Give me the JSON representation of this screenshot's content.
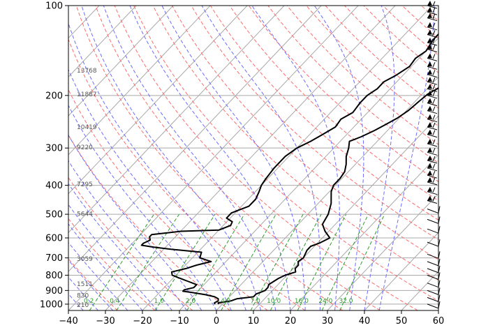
{
  "chart_data": {
    "type": "skew-t",
    "title": "",
    "xlabel": "",
    "ylabel": "",
    "x_range_degC": [
      -40,
      60
    ],
    "p_range_hPa": [
      1050,
      100
    ],
    "log_pressure_axis": true,
    "grid": true,
    "x_ticks": [
      -40,
      -30,
      -20,
      -10,
      0,
      10,
      20,
      30,
      40,
      50,
      60
    ],
    "p_ticks": [
      100,
      200,
      300,
      400,
      500,
      600,
      700,
      800,
      900,
      1000
    ],
    "height_labels": [
      {
        "p": 165,
        "text": "13768"
      },
      {
        "p": 198,
        "text": "11887"
      },
      {
        "p": 255,
        "text": "10419"
      },
      {
        "p": 298,
        "text": "9220"
      },
      {
        "p": 397,
        "text": "7295"
      },
      {
        "p": 498,
        "text": "5644"
      },
      {
        "p": 705,
        "text": "3059"
      },
      {
        "p": 855,
        "text": "1511"
      },
      {
        "p": 935,
        "text": "830"
      },
      {
        "p": 1007,
        "text": "210"
      }
    ],
    "mixing_ratio_labels": [
      "0.2",
      "0.4",
      "1.0",
      "2.0",
      "4.0",
      "7.0",
      "10.0",
      "16.0",
      "24.0",
      "32.0"
    ],
    "mixing_ratio_label_temps_degC": [
      -34.5,
      -27.5,
      -15.5,
      -7,
      2.5,
      10.5,
      15.5,
      23,
      29.5,
      35
    ],
    "temperature_profile": [
      {
        "p": 1000,
        "t": -1
      },
      {
        "p": 990,
        "t": -1.5
      },
      {
        "p": 975,
        "t": 1.5
      },
      {
        "p": 960,
        "t": 2.5
      },
      {
        "p": 945,
        "t": 6.5
      },
      {
        "p": 925,
        "t": 6.5
      },
      {
        "p": 900,
        "t": 8
      },
      {
        "p": 880,
        "t": 8
      },
      {
        "p": 860,
        "t": 7.5
      },
      {
        "p": 840,
        "t": 8
      },
      {
        "p": 820,
        "t": 8.5
      },
      {
        "p": 800,
        "t": 9.5
      },
      {
        "p": 780,
        "t": 11.5
      },
      {
        "p": 760,
        "t": 10.5
      },
      {
        "p": 740,
        "t": 10.5
      },
      {
        "p": 720,
        "t": 9.5
      },
      {
        "p": 700,
        "t": 10
      },
      {
        "p": 680,
        "t": 9.5
      },
      {
        "p": 660,
        "t": 9
      },
      {
        "p": 640,
        "t": 9
      },
      {
        "p": 625,
        "t": 10.5
      },
      {
        "p": 600,
        "t": 12
      },
      {
        "p": 570,
        "t": 9
      },
      {
        "p": 540,
        "t": 6.5
      },
      {
        "p": 500,
        "t": 5.5
      },
      {
        "p": 460,
        "t": 3.5
      },
      {
        "p": 420,
        "t": 0.5
      },
      {
        "p": 400,
        "t": -0.5
      },
      {
        "p": 380,
        "t": -0.5
      },
      {
        "p": 360,
        "t": -1
      },
      {
        "p": 340,
        "t": -2.5
      },
      {
        "p": 320,
        "t": -4.5
      },
      {
        "p": 300,
        "t": -6
      },
      {
        "p": 285,
        "t": -7.5
      },
      {
        "p": 275,
        "t": -5.5
      },
      {
        "p": 262,
        "t": -3.5
      },
      {
        "p": 250,
        "t": -2
      },
      {
        "p": 238,
        "t": -0.5
      },
      {
        "p": 225,
        "t": 0.5
      },
      {
        "p": 210,
        "t": 1
      },
      {
        "p": 198,
        "t": 1.5
      },
      {
        "p": 188,
        "t": 3
      },
      {
        "p": 182,
        "t": 5
      },
      {
        "p": 176,
        "t": 8.5
      },
      {
        "p": 168,
        "t": 9
      },
      {
        "p": 160,
        "t": 9.5
      },
      {
        "p": 150,
        "t": 10
      },
      {
        "p": 140,
        "t": 10
      },
      {
        "p": 132,
        "t": 12
      },
      {
        "p": 125,
        "t": 11.5
      },
      {
        "p": 118,
        "t": 11
      },
      {
        "p": 110,
        "t": 10.5
      },
      {
        "p": 100,
        "t": 10
      }
    ],
    "dewpoint_profile": [
      {
        "p": 1000,
        "t": -2
      },
      {
        "p": 990,
        "t": -2.5
      },
      {
        "p": 975,
        "t": -2
      },
      {
        "p": 960,
        "t": -2.5
      },
      {
        "p": 945,
        "t": -4
      },
      {
        "p": 930,
        "t": -7
      },
      {
        "p": 915,
        "t": -11
      },
      {
        "p": 905,
        "t": -14
      },
      {
        "p": 895,
        "t": -14
      },
      {
        "p": 880,
        "t": -12
      },
      {
        "p": 860,
        "t": -12
      },
      {
        "p": 840,
        "t": -15
      },
      {
        "p": 820,
        "t": -18
      },
      {
        "p": 800,
        "t": -21
      },
      {
        "p": 780,
        "t": -22
      },
      {
        "p": 760,
        "t": -19
      },
      {
        "p": 740,
        "t": -17
      },
      {
        "p": 720,
        "t": -14
      },
      {
        "p": 700,
        "t": -18
      },
      {
        "p": 670,
        "t": -19
      },
      {
        "p": 655,
        "t": -28
      },
      {
        "p": 645,
        "t": -33
      },
      {
        "p": 635,
        "t": -37
      },
      {
        "p": 625,
        "t": -37
      },
      {
        "p": 610,
        "t": -36
      },
      {
        "p": 595,
        "t": -37
      },
      {
        "p": 585,
        "t": -37
      },
      {
        "p": 570,
        "t": -30
      },
      {
        "p": 565,
        "t": -20
      },
      {
        "p": 545,
        "t": -18
      },
      {
        "p": 530,
        "t": -18.5
      },
      {
        "p": 515,
        "t": -21
      },
      {
        "p": 495,
        "t": -21
      },
      {
        "p": 470,
        "t": -18
      },
      {
        "p": 445,
        "t": -18
      },
      {
        "p": 420,
        "t": -19
      },
      {
        "p": 400,
        "t": -20
      },
      {
        "p": 380,
        "t": -20.5
      },
      {
        "p": 350,
        "t": -21
      },
      {
        "p": 320,
        "t": -21
      },
      {
        "p": 300,
        "t": -20
      },
      {
        "p": 285,
        "t": -18
      },
      {
        "p": 270,
        "t": -16.5
      },
      {
        "p": 255,
        "t": -15
      },
      {
        "p": 240,
        "t": -15.5
      },
      {
        "p": 228,
        "t": -14
      },
      {
        "p": 212,
        "t": -14.5
      },
      {
        "p": 200,
        "t": -14.5
      },
      {
        "p": 190,
        "t": -13.5
      },
      {
        "p": 180,
        "t": -13.5
      },
      {
        "p": 172,
        "t": -12
      },
      {
        "p": 160,
        "t": -10.5
      },
      {
        "p": 150,
        "t": -11
      },
      {
        "p": 142,
        "t": -10
      },
      {
        "p": 130,
        "t": -11
      },
      {
        "p": 118,
        "t": -11
      },
      {
        "p": 108,
        "t": -11
      },
      {
        "p": 100,
        "t": -11
      }
    ],
    "wind_barbs_p_hPa": [
      100,
      105,
      110,
      118,
      125,
      133,
      140,
      150,
      160,
      170,
      180,
      190,
      200,
      212,
      225,
      240,
      255,
      270,
      290,
      310,
      330,
      350,
      370,
      390,
      420,
      450,
      480,
      520,
      560,
      620,
      680,
      720,
      760,
      800,
      850,
      900,
      950,
      1000
    ],
    "colors": {
      "temperature": "#000000",
      "dewpoint": "#000000",
      "isotherms": "#a8a8a8",
      "isobars": "#a8a8a8",
      "dry_adiabats": "#ff6b6b",
      "moist_adiabats": "#6b6bff",
      "mixing_ratio": "#2a9d2a",
      "barbs": "#000000"
    }
  }
}
